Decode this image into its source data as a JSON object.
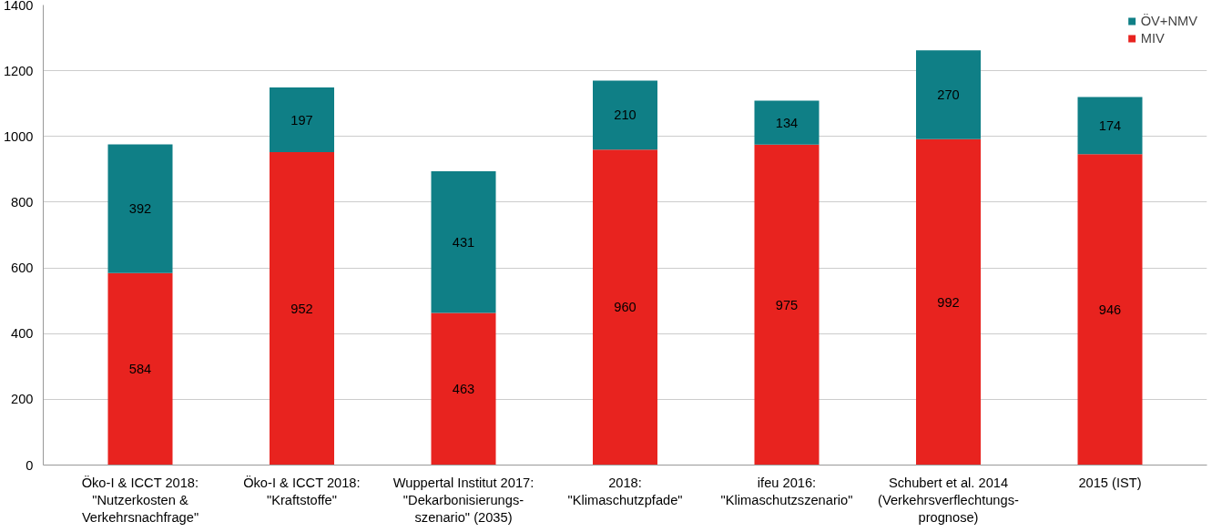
{
  "chart_data": {
    "type": "bar",
    "stacked": true,
    "data_labels": true,
    "grid": "y",
    "legend": "top right",
    "categories": [
      "Öko-I & ICCT 2018:\n\"Nutzerkosten &\nVerkehrsnachfrage\"",
      "Öko-I & ICCT 2018:\n\"Kraftstoffe\"",
      "Wuppertal Institut 2017:\n\"Dekarbonisierungs-\nszenario\" (2035)",
      "2018:\n\"Klimaschutzpfade\"",
      "ifeu 2016:\n\"Klimaschutzszenario\"",
      "Schubert et al. 2014\n(Verkehrsverflechtungs-\nprognose)",
      "2015 (IST)"
    ],
    "series": [
      {
        "name": "MIV",
        "color": "#e8231f",
        "values": [
          584,
          952,
          463,
          960,
          975,
          992,
          946
        ]
      },
      {
        "name": "ÖV+NMV",
        "color": "#0f7f86",
        "values": [
          392,
          197,
          431,
          210,
          134,
          270,
          174
        ]
      }
    ],
    "ylim": [
      0,
      1400
    ],
    "yticks": [
      0,
      200,
      400,
      600,
      800,
      1000,
      1200,
      1400
    ]
  }
}
